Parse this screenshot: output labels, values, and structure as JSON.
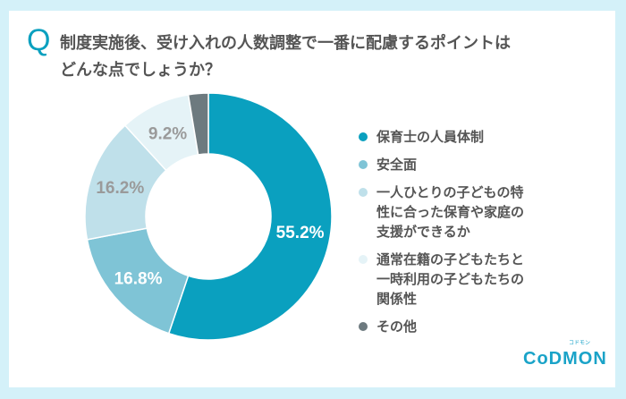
{
  "question": {
    "mark": "Q",
    "text": "制度実施後、受け入れの人数調整で一番に配慮するポイントは\nどんな点でしょうか？"
  },
  "colors": {
    "background": "#d4f1f9",
    "accent": "#0aa0bf"
  },
  "logo": {
    "text": "CoDMON",
    "sub": "コドモン"
  },
  "chart_data": {
    "type": "pie",
    "donut": true,
    "start": "top, clockwise",
    "categories": [
      "保育士の人員体制",
      "安全面",
      "一人ひとりの子どもの特性に合った保育や家庭の支援ができるか",
      "通常在籍の子どもたちと一時利用の子どもたちの関係性",
      "その他"
    ],
    "legend_labels": [
      "保育士の人員体制",
      "安全面",
      "一人ひとりの子どもの特\n性に合った保育や家庭の\n支援ができるか",
      "通常在籍の子どもたちと\n一時利用の子どもたちの\n関係性",
      "その他"
    ],
    "values": [
      55.2,
      16.8,
      16.2,
      9.2,
      2.6
    ],
    "data_labels": [
      "55.2%",
      "16.8%",
      "16.2%",
      "9.2%",
      ""
    ],
    "colors": [
      "#0aa0bf",
      "#7fc4d6",
      "#bfe0ea",
      "#e5f3f7",
      "#6d7a7f"
    ],
    "label_colors": [
      "#ffffff",
      "#ffffff",
      "#9a9a9a",
      "#9a9a9a",
      "#ffffff"
    ],
    "legend_placement": "right"
  }
}
